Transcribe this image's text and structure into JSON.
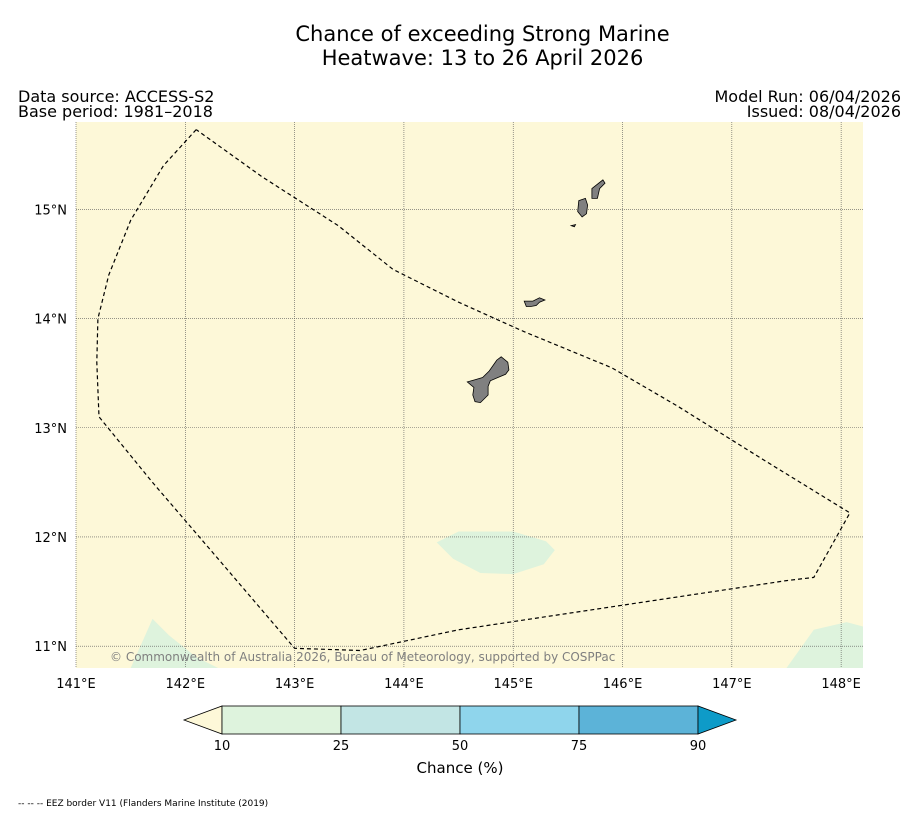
{
  "title": {
    "line1": "Chance of exceeding Strong Marine",
    "line2": "Heatwave: 13 to 26 April 2026"
  },
  "meta": {
    "data_source": "Data source: ACCESS-S2",
    "base_period": "Base period: 1981–2018",
    "model_run": "Model Run: 06/04/2026",
    "issued": "Issued: 08/04/2026"
  },
  "map": {
    "background_color": "#fdf8d8",
    "lon_range": [
      141.0,
      148.2
    ],
    "lat_range": [
      10.8,
      15.8
    ],
    "lon_ticks": [
      {
        "value": 141,
        "label": "141°E"
      },
      {
        "value": 142,
        "label": "142°E"
      },
      {
        "value": 143,
        "label": "143°E"
      },
      {
        "value": 144,
        "label": "144°E"
      },
      {
        "value": 145,
        "label": "145°E"
      },
      {
        "value": 146,
        "label": "146°E"
      },
      {
        "value": 147,
        "label": "147°E"
      },
      {
        "value": 148,
        "label": "148°E"
      }
    ],
    "lat_ticks": [
      {
        "value": 15,
        "label": "15°N"
      },
      {
        "value": 14,
        "label": "14°N"
      },
      {
        "value": 13,
        "label": "13°N"
      },
      {
        "value": 12,
        "label": "12°N"
      },
      {
        "value": 11,
        "label": "11°N"
      }
    ],
    "land_color": "#808080",
    "islands": [
      {
        "name": "Guam",
        "coords": [
          [
            144.89,
            13.65
          ],
          [
            144.95,
            13.6
          ],
          [
            144.96,
            13.53
          ],
          [
            144.93,
            13.49
          ],
          [
            144.86,
            13.46
          ],
          [
            144.79,
            13.43
          ],
          [
            144.77,
            13.38
          ],
          [
            144.77,
            13.3
          ],
          [
            144.7,
            13.23
          ],
          [
            144.65,
            13.24
          ],
          [
            144.63,
            13.3
          ],
          [
            144.64,
            13.37
          ],
          [
            144.58,
            13.42
          ],
          [
            144.65,
            13.44
          ],
          [
            144.72,
            13.46
          ],
          [
            144.78,
            13.52
          ],
          [
            144.85,
            13.62
          ]
        ]
      },
      {
        "name": "Rota",
        "coords": [
          [
            145.1,
            14.16
          ],
          [
            145.18,
            14.16
          ],
          [
            145.24,
            14.19
          ],
          [
            145.29,
            14.17
          ],
          [
            145.24,
            14.15
          ],
          [
            145.21,
            14.12
          ],
          [
            145.16,
            14.11
          ],
          [
            145.12,
            14.11
          ]
        ]
      },
      {
        "name": "Tinian",
        "coords": [
          [
            145.6,
            15.08
          ],
          [
            145.66,
            15.1
          ],
          [
            145.68,
            15.04
          ],
          [
            145.67,
            14.96
          ],
          [
            145.63,
            14.93
          ],
          [
            145.59,
            14.98
          ]
        ]
      },
      {
        "name": "Saipan",
        "coords": [
          [
            145.72,
            15.19
          ],
          [
            145.82,
            15.27
          ],
          [
            145.84,
            15.24
          ],
          [
            145.79,
            15.19
          ],
          [
            145.77,
            15.1
          ],
          [
            145.72,
            15.1
          ]
        ]
      },
      {
        "name": "Aguijan",
        "coords": [
          [
            145.53,
            14.85
          ],
          [
            145.57,
            14.86
          ],
          [
            145.56,
            14.84
          ]
        ]
      }
    ],
    "eez_border": [
      [
        142.1,
        15.73
      ],
      [
        141.8,
        15.4
      ],
      [
        141.5,
        14.9
      ],
      [
        141.3,
        14.4
      ],
      [
        141.2,
        14.0
      ],
      [
        141.19,
        13.6
      ],
      [
        141.21,
        13.1
      ],
      [
        141.7,
        12.5
      ],
      [
        142.3,
        11.8
      ],
      [
        143.0,
        10.98
      ],
      [
        143.6,
        10.96
      ],
      [
        144.5,
        11.15
      ],
      [
        145.5,
        11.3
      ],
      [
        146.5,
        11.45
      ],
      [
        147.5,
        11.6
      ],
      [
        147.75,
        11.63
      ],
      [
        148.08,
        12.22
      ],
      [
        147.3,
        12.7
      ],
      [
        146.5,
        13.2
      ],
      [
        145.9,
        13.55
      ],
      [
        145.1,
        13.88
      ],
      [
        144.5,
        14.15
      ],
      [
        143.9,
        14.45
      ],
      [
        143.4,
        14.85
      ],
      [
        142.7,
        15.3
      ],
      [
        142.1,
        15.73
      ]
    ],
    "contours": [
      {
        "level": "10-25",
        "color": "#def3dd",
        "coords": [
          [
            144.3,
            11.95
          ],
          [
            144.5,
            12.05
          ],
          [
            145.0,
            12.05
          ],
          [
            145.3,
            11.96
          ],
          [
            145.38,
            11.88
          ],
          [
            145.28,
            11.75
          ],
          [
            145.0,
            11.66
          ],
          [
            144.7,
            11.67
          ],
          [
            144.45,
            11.8
          ]
        ]
      },
      {
        "level": "10-25",
        "color": "#def3dd",
        "coords": [
          [
            141.5,
            10.8
          ],
          [
            141.7,
            11.25
          ],
          [
            141.85,
            11.1
          ],
          [
            142.1,
            10.9
          ],
          [
            142.3,
            10.8
          ]
        ]
      },
      {
        "level": "10-25",
        "color": "#def3dd",
        "coords": [
          [
            147.5,
            10.8
          ],
          [
            147.75,
            11.15
          ],
          [
            148.05,
            11.22
          ],
          [
            148.2,
            11.18
          ],
          [
            148.2,
            10.8
          ]
        ]
      }
    ],
    "copyright": "© Commonwealth of Australia 2026, Bureau of Meteorology, supported by COSPPac"
  },
  "colorbar": {
    "title": "Chance (%)",
    "levels": [
      "10",
      "25",
      "50",
      "75",
      "90"
    ],
    "under_color": "#fdf8d8",
    "over_color": "#0e9bc8",
    "bins": [
      {
        "range": "10-25",
        "color": "#def3dd"
      },
      {
        "range": "25-50",
        "color": "#c2e5e4"
      },
      {
        "range": "50-75",
        "color": "#8fd5ec"
      },
      {
        "range": "75-90",
        "color": "#5cb3d8"
      }
    ]
  },
  "footnote": "-- -- -- EEZ border V11 (Flanders Marine Institute (2019)"
}
